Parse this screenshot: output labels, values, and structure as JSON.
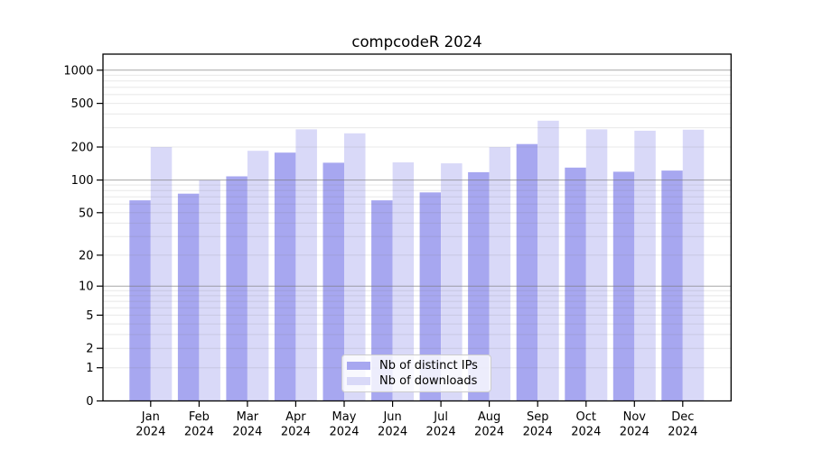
{
  "chart_data": {
    "type": "bar",
    "title": "compcodeR 2024",
    "categories": [
      "Jan",
      "Feb",
      "Mar",
      "Apr",
      "May",
      "Jun",
      "Jul",
      "Aug",
      "Sep",
      "Oct",
      "Nov",
      "Dec"
    ],
    "year_label": "2024",
    "series": [
      {
        "name": "Nb of distinct IPs",
        "color": "#a7a7f0",
        "values": [
          65,
          75,
          108,
          178,
          144,
          65,
          77,
          118,
          213,
          130,
          119,
          122
        ]
      },
      {
        "name": "Nb of downloads",
        "color": "#d9d9f8",
        "values": [
          200,
          100,
          185,
          290,
          267,
          145,
          142,
          200,
          348,
          290,
          282,
          288
        ]
      }
    ],
    "y_axis": {
      "scale": "log1p",
      "ticks": [
        1000,
        500,
        200,
        100,
        50,
        20,
        10,
        5,
        2,
        1,
        0
      ],
      "max": 1400
    },
    "xlabel": "",
    "ylabel": "",
    "grid": "horizontal",
    "legend_position": "bottom-center",
    "colors": {
      "major_grid": "#a7a7a7",
      "minor_grid": "#e9e9e9",
      "axis": "#000000",
      "background": "#ffffff"
    }
  }
}
